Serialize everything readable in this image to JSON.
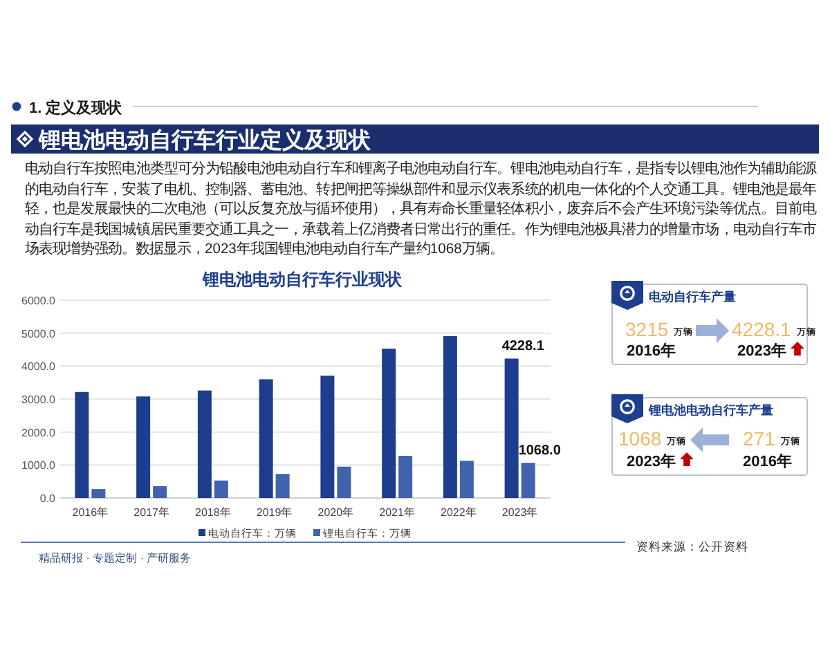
{
  "chart_data": [
    {
      "type": "bar",
      "title": "锂电池电动自行车行业现状",
      "categories": [
        "2016年",
        "2017年",
        "2018年",
        "2019年",
        "2020年",
        "2021年",
        "2022年",
        "2023年"
      ],
      "series": [
        {
          "name": "电动自行车：万辆",
          "color": "#1d3d8f",
          "values": [
            3215,
            3080,
            3260,
            3600,
            3710,
            4530,
            4910,
            4228.1
          ],
          "value_labels": [
            null,
            null,
            null,
            null,
            null,
            null,
            null,
            "4228.1"
          ]
        },
        {
          "name": "锂电自行车：万辆",
          "color": "#3f63ad",
          "values": [
            271,
            360,
            530,
            730,
            950,
            1280,
            1130,
            1068
          ],
          "value_labels": [
            null,
            null,
            null,
            null,
            null,
            null,
            null,
            "1068.0"
          ]
        }
      ],
      "ylim": [
        0,
        6000
      ],
      "yticks": [
        {
          "value": 0,
          "label": "0.0"
        },
        {
          "value": 1000,
          "label": "1000.0"
        },
        {
          "value": 2000,
          "label": "2000.0"
        },
        {
          "value": 3000,
          "label": "3000.0"
        },
        {
          "value": 4000,
          "label": "4000.0"
        },
        {
          "value": 5000,
          "label": "5000.0"
        },
        {
          "value": 6000,
          "label": "6000.0"
        }
      ],
      "grid": "y",
      "legend": "bottom",
      "annotations": [
        "1. 定义及现状",
        "锂电池电动自行车行业定义及现状",
        "电动自行车按照电池类型可分为铅酸电池电动自行车和锂离子电池电动自行车。锂电池电动自行车，是指专以锂电池作为辅助能源的电动自行车，安装了电机、控制器、蓄电池、转把闸把等操纵部件和显示仪表系统的机电一体化的个人交通工具。锂电池是最年轻，也是发展最快的二次电池（可以反复充放与循环使用），具有寿命长重量轻体积小，废弃后不会产生环境污染等优点。目前电动自行车是我国城镇居民重要交通工具之一，承载着上亿消费者日常出行的重任。作为锂电池极具潜力的增量市场，电动自行车市场表现增势强劲。数据显示，2023年我国锂电池电动自行车产量约1068万辆。",
        "资料来源：公开资料",
        "精品研报 · 专题定制 · 产研服务"
      ]
    },
    {
      "type": "other",
      "title": "电动自行车产量",
      "annotations": [
        "3215",
        "万辆",
        "2016年",
        "4228.1",
        "万辆",
        "2023年"
      ]
    },
    {
      "type": "other",
      "title": "锂电池电动自行车产量",
      "annotations": [
        "1068",
        "万辆",
        "2023年",
        "271",
        "万辆",
        "2016年"
      ]
    }
  ]
}
